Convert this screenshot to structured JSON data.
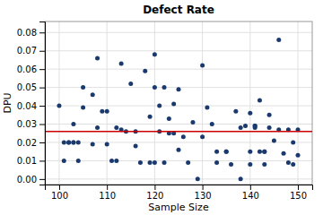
{
  "chart_data": {
    "type": "scatter",
    "title": "Defect Rate",
    "xlabel": "Sample Size",
    "ylabel": "DPU",
    "x": [
      100,
      101,
      101,
      102,
      102,
      103,
      103,
      103,
      104,
      104,
      105,
      105,
      107,
      107,
      108,
      108,
      109,
      110,
      110,
      111,
      112,
      112,
      113,
      113,
      114,
      115,
      116,
      116,
      117,
      118,
      119,
      119,
      120,
      120,
      120,
      121,
      121,
      122,
      122,
      123,
      123,
      124,
      124,
      125,
      125,
      126,
      127,
      128,
      129,
      130,
      130,
      131,
      132,
      133,
      133,
      135,
      135,
      136,
      137,
      138,
      138,
      139,
      140,
      140,
      140,
      141,
      141,
      141,
      142,
      142,
      143,
      143,
      143,
      144,
      144,
      145,
      146,
      146,
      147,
      148,
      148,
      149,
      149,
      150,
      150
    ],
    "values": [
      0.04,
      0.02,
      0.01,
      0.02,
      0.02,
      0.03,
      0.02,
      0.02,
      0.02,
      0.01,
      0.05,
      0.039,
      0.046,
      0.019,
      0.066,
      0.028,
      0.037,
      0.019,
      0.037,
      0.01,
      0.01,
      0.028,
      0.027,
      0.063,
      0.026,
      0.052,
      0.026,
      0.018,
      0.009,
      0.059,
      0.034,
      0.009,
      0.068,
      0.05,
      0.009,
      0.04,
      0.026,
      0.05,
      0.009,
      0.033,
      0.025,
      0.041,
      0.025,
      0.016,
      0.049,
      0.023,
      0.009,
      0.031,
      0.0,
      0.062,
      0.023,
      0.039,
      0.03,
      0.009,
      0.015,
      0.015,
      0.015,
      0.008,
      0.037,
      0.0,
      0.028,
      0.029,
      0.036,
      0.015,
      0.008,
      0.029,
      0.029,
      0.028,
      0.043,
      0.015,
      0.015,
      0.015,
      0.008,
      0.035,
      0.028,
      0.021,
      0.076,
      0.027,
      0.014,
      0.009,
      0.027,
      0.02,
      0.008,
      0.027,
      0.013
    ],
    "color": "#1a3a6e",
    "mean_line": {
      "value": 0.026,
      "color": "#cc0000"
    },
    "xlim": [
      97,
      153
    ],
    "ylim": [
      -0.003,
      0.086
    ],
    "xticks": [
      100,
      110,
      120,
      130,
      140,
      150
    ],
    "yticks": [
      {
        "value": 0.0,
        "label": "0.00"
      },
      0.01,
      0.02,
      0.03,
      0.04,
      0.05,
      0.06,
      0.07,
      0.08
    ],
    "grid": true
  }
}
